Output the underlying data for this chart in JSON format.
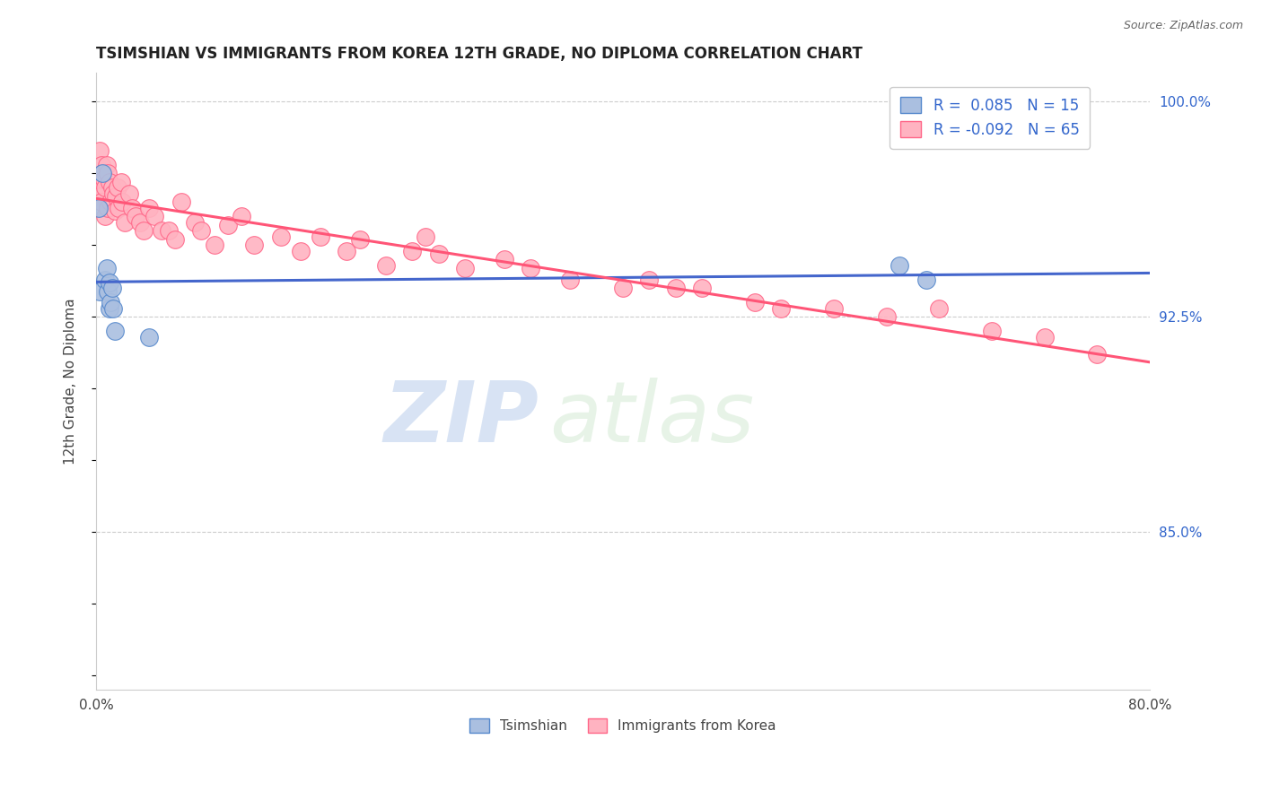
{
  "title": "TSIMSHIAN VS IMMIGRANTS FROM KOREA 12TH GRADE, NO DIPLOMA CORRELATION CHART",
  "source": "Source: ZipAtlas.com",
  "ylabel": "12th Grade, No Diploma",
  "xlim": [
    0.0,
    0.8
  ],
  "ylim": [
    0.795,
    1.01
  ],
  "grid_yticks": [
    1.0,
    0.925,
    0.85,
    0.775
  ],
  "ytick_positions": [
    0.8,
    0.825,
    0.85,
    0.875,
    0.9,
    0.925,
    0.95,
    0.975,
    1.0
  ],
  "ytick_labels_right": [
    "",
    "",
    "85.0%",
    "",
    "",
    "92.5%",
    "",
    "",
    "100.0%"
  ],
  "blue_color": "#AABFE0",
  "pink_color": "#FFB3C1",
  "blue_edge": "#5588CC",
  "pink_edge": "#FF6688",
  "line_blue": "#4466CC",
  "line_pink": "#FF5577",
  "legend_R_blue": " 0.085",
  "legend_N_blue": "15",
  "legend_R_pink": "-0.092",
  "legend_N_pink": "65",
  "legend_label_blue": "Tsimshian",
  "legend_label_pink": "Immigrants from Korea",
  "watermark_zip": "ZIP",
  "watermark_atlas": "atlas",
  "blue_points_x": [
    0.002,
    0.005,
    0.003,
    0.007,
    0.008,
    0.009,
    0.01,
    0.01,
    0.011,
    0.012,
    0.013,
    0.014,
    0.04,
    0.61,
    0.63
  ],
  "blue_points_y": [
    0.963,
    0.975,
    0.934,
    0.938,
    0.942,
    0.934,
    0.937,
    0.928,
    0.93,
    0.935,
    0.928,
    0.92,
    0.918,
    0.943,
    0.938
  ],
  "pink_points_x": [
    0.001,
    0.002,
    0.003,
    0.004,
    0.004,
    0.005,
    0.006,
    0.007,
    0.007,
    0.008,
    0.009,
    0.009,
    0.01,
    0.011,
    0.012,
    0.013,
    0.014,
    0.015,
    0.016,
    0.017,
    0.019,
    0.02,
    0.022,
    0.025,
    0.027,
    0.03,
    0.033,
    0.036,
    0.04,
    0.044,
    0.05,
    0.055,
    0.06,
    0.065,
    0.075,
    0.08,
    0.09,
    0.1,
    0.11,
    0.12,
    0.14,
    0.155,
    0.17,
    0.19,
    0.2,
    0.22,
    0.24,
    0.25,
    0.26,
    0.28,
    0.31,
    0.33,
    0.36,
    0.4,
    0.42,
    0.44,
    0.46,
    0.5,
    0.52,
    0.56,
    0.6,
    0.64,
    0.68,
    0.72,
    0.76
  ],
  "pink_points_y": [
    0.97,
    0.967,
    0.983,
    0.978,
    0.965,
    0.975,
    0.973,
    0.97,
    0.96,
    0.978,
    0.975,
    0.963,
    0.972,
    0.965,
    0.97,
    0.968,
    0.962,
    0.967,
    0.97,
    0.963,
    0.972,
    0.965,
    0.958,
    0.968,
    0.963,
    0.96,
    0.958,
    0.955,
    0.963,
    0.96,
    0.955,
    0.955,
    0.952,
    0.965,
    0.958,
    0.955,
    0.95,
    0.957,
    0.96,
    0.95,
    0.953,
    0.948,
    0.953,
    0.948,
    0.952,
    0.943,
    0.948,
    0.953,
    0.947,
    0.942,
    0.945,
    0.942,
    0.938,
    0.935,
    0.938,
    0.935,
    0.935,
    0.93,
    0.928,
    0.928,
    0.925,
    0.928,
    0.92,
    0.918,
    0.912
  ]
}
